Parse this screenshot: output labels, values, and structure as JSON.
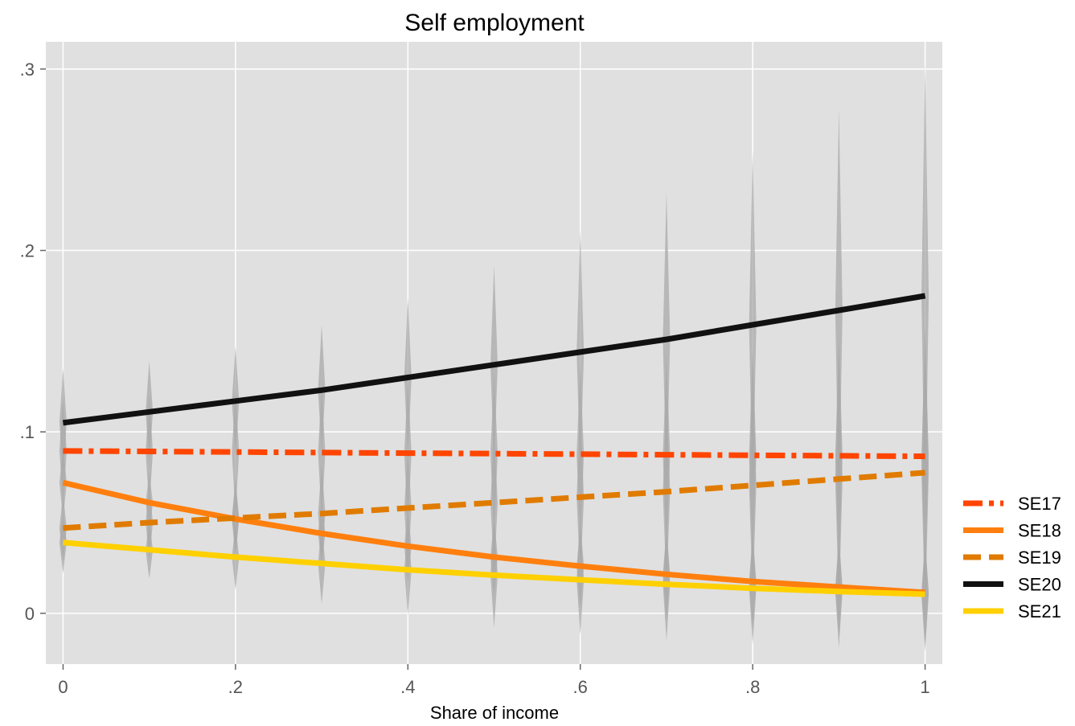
{
  "chart_data": {
    "type": "line",
    "title": "Self employment",
    "xlabel": "Share of income",
    "ylabel": "",
    "xlim": [
      -0.02,
      1.02
    ],
    "ylim": [
      -0.028,
      0.315
    ],
    "x_ticks": [
      0,
      0.2,
      0.4,
      0.6,
      0.8,
      1
    ],
    "x_tick_labels": [
      "0",
      ".2",
      ".4",
      ".6",
      ".8",
      "1"
    ],
    "y_ticks": [
      0,
      0.1,
      0.2,
      0.3
    ],
    "y_tick_labels": [
      "0",
      ".1",
      ".2",
      ".3"
    ],
    "grid": true,
    "legend_position": "right",
    "background": "#e0e0e0",
    "x": [
      0,
      0.1,
      0.2,
      0.3,
      0.4,
      0.5,
      0.6,
      0.7,
      0.8,
      0.9,
      1
    ],
    "series": [
      {
        "name": "SE17",
        "color": "#ff4500",
        "dash": "dashdot",
        "values": [
          0.0895,
          0.0892,
          0.0889,
          0.0886,
          0.0883,
          0.088,
          0.0877,
          0.0874,
          0.0871,
          0.0868,
          0.0865
        ],
        "ci_low": [
          0.06,
          0.058,
          0.055,
          0.052,
          0.048,
          0.044,
          0.039,
          0.034,
          0.028,
          0.022,
          0.016
        ],
        "ci_high": [
          0.119,
          0.12,
          0.123,
          0.125,
          0.129,
          0.132,
          0.136,
          0.141,
          0.146,
          0.152,
          0.157
        ]
      },
      {
        "name": "SE18",
        "color": "#ff7f0e",
        "dash": "solid",
        "values": [
          0.072,
          0.061,
          0.052,
          0.044,
          0.037,
          0.031,
          0.026,
          0.0215,
          0.0175,
          0.0145,
          0.0115
        ],
        "ci_low": [
          0.052,
          0.045,
          0.035,
          0.026,
          0.017,
          0.009,
          0.002,
          -0.004,
          -0.009,
          -0.013,
          -0.017
        ],
        "ci_high": [
          0.092,
          0.077,
          0.069,
          0.062,
          0.057,
          0.053,
          0.05,
          0.047,
          0.044,
          0.042,
          0.04
        ]
      },
      {
        "name": "SE19",
        "color": "#e07b00",
        "dash": "dashed",
        "values": [
          0.047,
          0.05,
          0.0525,
          0.055,
          0.058,
          0.061,
          0.064,
          0.067,
          0.0705,
          0.074,
          0.0775
        ],
        "ci_low": [
          0.028,
          0.03,
          0.03,
          0.028,
          0.025,
          0.022,
          0.018,
          0.013,
          0.008,
          0.003,
          -0.003
        ],
        "ci_high": [
          0.066,
          0.07,
          0.075,
          0.082,
          0.091,
          0.1,
          0.11,
          0.121,
          0.133,
          0.145,
          0.158
        ]
      },
      {
        "name": "SE20",
        "color": "#111111",
        "dash": "solid",
        "values": [
          0.105,
          0.111,
          0.117,
          0.123,
          0.13,
          0.137,
          0.144,
          0.151,
          0.159,
          0.167,
          0.175
        ],
        "ci_low": [
          0.077,
          0.083,
          0.087,
          0.088,
          0.086,
          0.082,
          0.077,
          0.07,
          0.062,
          0.055,
          0.047
        ],
        "ci_high": [
          0.135,
          0.139,
          0.147,
          0.159,
          0.174,
          0.192,
          0.211,
          0.232,
          0.255,
          0.278,
          0.303
        ]
      },
      {
        "name": "SE21",
        "color": "#ffd000",
        "dash": "solid",
        "values": [
          0.039,
          0.035,
          0.031,
          0.0275,
          0.024,
          0.021,
          0.0185,
          0.016,
          0.0138,
          0.012,
          0.0105
        ],
        "ci_low": [
          0.022,
          0.019,
          0.013,
          0.005,
          -0.001,
          -0.008,
          -0.012,
          -0.015,
          -0.017,
          -0.019,
          -0.021
        ],
        "ci_high": [
          0.056,
          0.051,
          0.049,
          0.05,
          0.049,
          0.05,
          0.049,
          0.047,
          0.045,
          0.043,
          0.042
        ]
      }
    ]
  }
}
